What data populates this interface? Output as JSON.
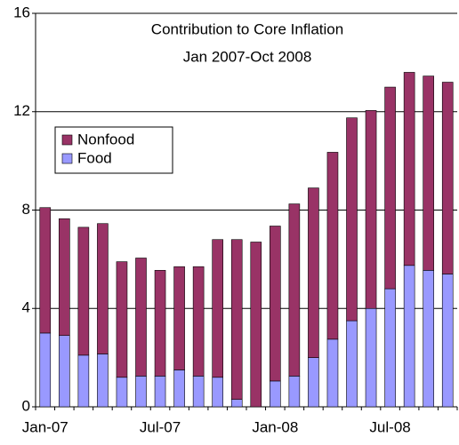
{
  "chart_data": {
    "type": "stacked_bar",
    "title": "Contribution to Core Inflation",
    "subtitle": "Jan 2007-Oct 2008",
    "categories": [
      "Jan-07",
      null,
      null,
      null,
      null,
      null,
      "Jul-07",
      null,
      null,
      null,
      null,
      null,
      "Jan-08",
      null,
      null,
      null,
      null,
      null,
      "Jul-08",
      null,
      null,
      null
    ],
    "series": [
      {
        "name": "Food",
        "color": "#9999ff",
        "values": [
          3.0,
          2.9,
          2.1,
          2.15,
          1.2,
          1.25,
          1.25,
          1.5,
          1.25,
          1.2,
          0.3,
          0,
          1.05,
          1.25,
          2.0,
          2.75,
          3.5,
          4.0,
          4.8,
          5.75,
          5.55,
          5.4
        ]
      },
      {
        "name": "Nonfood",
        "color": "#993366",
        "values": [
          5.1,
          4.75,
          5.2,
          5.3,
          4.7,
          4.8,
          4.3,
          4.2,
          4.45,
          5.6,
          6.5,
          6.7,
          6.3,
          7.0,
          6.9,
          7.6,
          8.25,
          8.05,
          8.2,
          7.85,
          7.9,
          7.8
        ]
      }
    ],
    "ylim": [
      0,
      16
    ],
    "yticks": [
      0,
      4,
      8,
      12,
      16
    ],
    "grid": true
  }
}
